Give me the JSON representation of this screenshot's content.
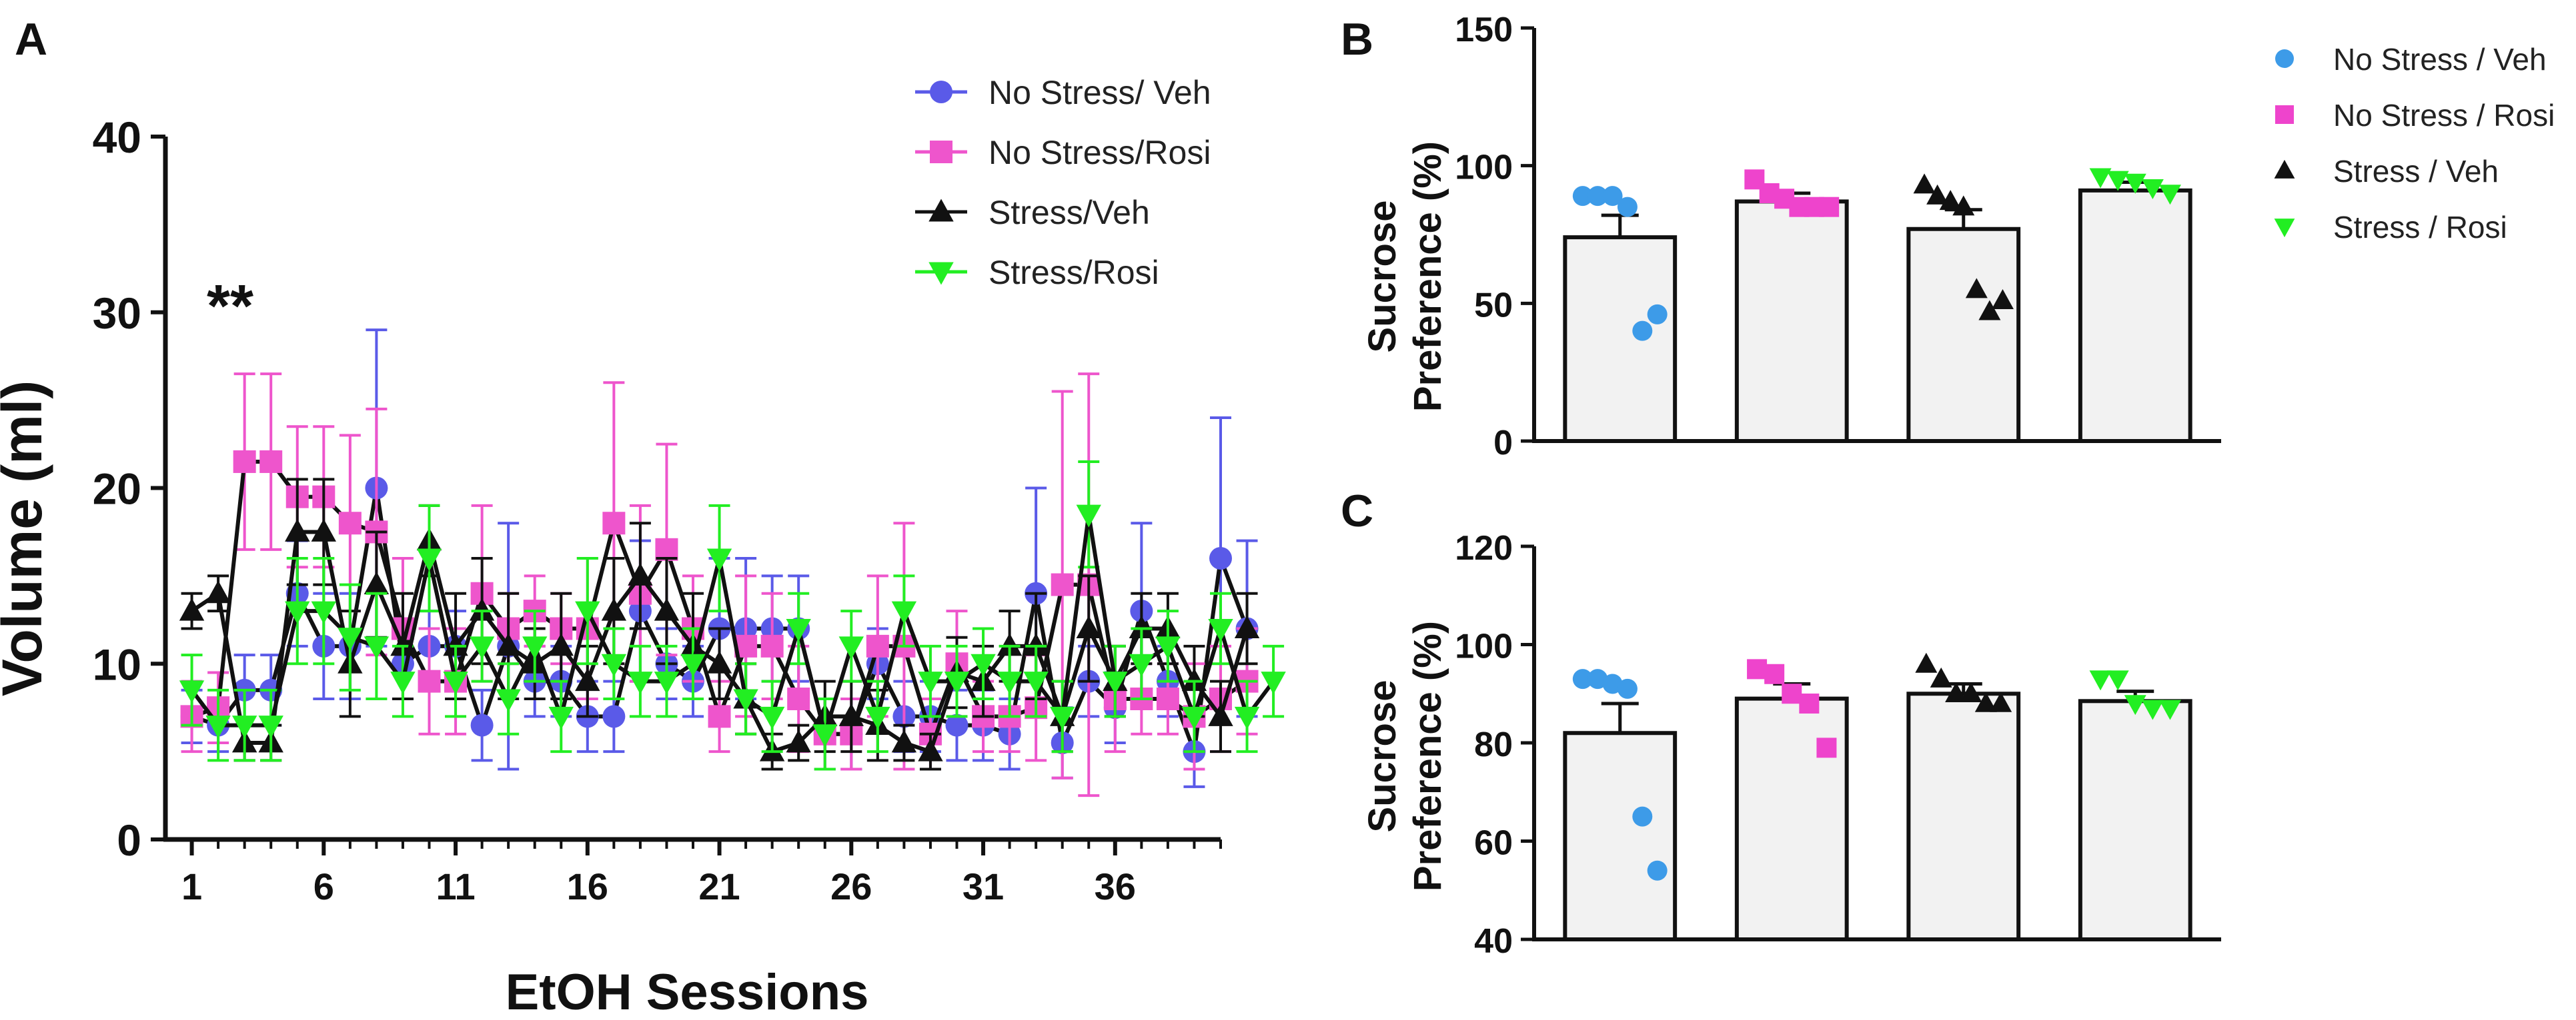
{
  "chart_data": [
    {
      "panel": "A",
      "type": "line",
      "title": "",
      "xlabel": "EtOH Sessions",
      "ylabel": "Volume (ml)",
      "ylim": [
        0,
        40
      ],
      "xlim": [
        0,
        40
      ],
      "yticks": [
        0,
        10,
        20,
        30,
        40
      ],
      "xticks": [
        1,
        6,
        11,
        16,
        21,
        26,
        31,
        36
      ],
      "annotation": "**",
      "annotation_at": {
        "x": 3,
        "y": 31
      },
      "series": [
        {
          "name": "No Stress/ Veh",
          "color": "#5a5ae8",
          "marker": "circle",
          "values": [
            7,
            6.5,
            8.5,
            8.5,
            14,
            11,
            11,
            20,
            10,
            11,
            11,
            6.5,
            11,
            9,
            9,
            7,
            7,
            13,
            10,
            9,
            12,
            12,
            12,
            12,
            6,
            6,
            10,
            7,
            7,
            6.5,
            6.5,
            6,
            14,
            5.5,
            9,
            7.5,
            13,
            9,
            5,
            16,
            12
          ],
          "errors": [
            1.5,
            1.5,
            2,
            2,
            3,
            3,
            3,
            9,
            2,
            2,
            2,
            2,
            7,
            2,
            2,
            2,
            2,
            4,
            2,
            2,
            4,
            4,
            3,
            3,
            2,
            2,
            2,
            2,
            2,
            2,
            2,
            2,
            6,
            2,
            2,
            2,
            5,
            2,
            2,
            8,
            5
          ]
        },
        {
          "name": "No Stress/Rosi",
          "color": "#ee55cc",
          "marker": "square",
          "values": [
            7,
            7.5,
            21.5,
            21.5,
            19.5,
            19.5,
            18,
            17.5,
            12,
            9,
            9,
            14,
            12,
            13,
            12,
            12,
            18,
            14,
            16.5,
            12,
            7,
            11,
            11,
            8,
            6,
            6,
            11,
            11,
            6,
            10,
            7,
            7,
            7.5,
            14.5,
            14.5,
            8,
            8,
            8,
            7,
            8,
            9
          ],
          "errors": [
            2,
            2,
            5,
            5,
            4,
            4,
            5,
            7,
            4,
            3,
            3,
            5,
            2,
            2,
            2,
            4,
            8,
            5,
            6,
            3,
            2,
            4,
            3,
            3,
            2,
            2,
            4,
            7,
            2,
            3,
            2,
            2,
            3,
            11,
            12,
            3,
            2,
            2,
            3,
            3,
            3
          ]
        },
        {
          "name": "Stress/Veh",
          "color": "#111111",
          "marker": "triangle-up",
          "values": [
            13,
            14,
            5.5,
            5.5,
            17.5,
            17.5,
            10,
            14.5,
            11,
            17,
            11,
            13,
            11,
            10,
            11,
            9,
            13,
            15,
            13,
            11,
            10,
            8,
            5,
            5.5,
            7,
            7,
            6.5,
            5.5,
            5,
            9.5,
            9,
            11,
            11,
            7,
            12,
            9,
            12,
            12,
            9,
            7,
            12
          ],
          "errors": [
            1,
            1,
            1,
            1,
            3,
            3,
            3,
            3,
            3,
            2,
            3,
            3,
            3,
            2,
            3,
            2,
            3,
            3,
            3,
            3,
            2,
            2,
            1,
            1,
            2,
            2,
            2,
            1,
            1,
            2,
            2,
            2,
            3,
            2,
            3,
            2,
            2,
            2,
            2,
            2,
            2
          ]
        },
        {
          "name": "Stress/Rosi",
          "color": "#22ee22",
          "marker": "triangle-down",
          "values": [
            8.5,
            6.5,
            6.5,
            6.5,
            13,
            13,
            11.5,
            11,
            9,
            16,
            9,
            11,
            8,
            11,
            7,
            13,
            10,
            9,
            9,
            10,
            16,
            8,
            7,
            12,
            6,
            11,
            7,
            13,
            9,
            9,
            10,
            9,
            9,
            7,
            18.5,
            9,
            10,
            11,
            7,
            12,
            7,
            9
          ],
          "errors": [
            2,
            2,
            2,
            2,
            3,
            3,
            3,
            3,
            2,
            3,
            2,
            2,
            2,
            2,
            2,
            3,
            2,
            2,
            2,
            2,
            3,
            2,
            2,
            2,
            2,
            2,
            2,
            2,
            2,
            2,
            2,
            2,
            2,
            2,
            3,
            2,
            2,
            2,
            2,
            2,
            2,
            2
          ]
        }
      ]
    },
    {
      "panel": "B",
      "type": "bar",
      "ylabel_line1": "Sucrose",
      "ylabel_line2": "Preference (%)",
      "ylim": [
        0,
        150
      ],
      "yticks": [
        0,
        50,
        100,
        150
      ],
      "categories": [
        "No Stress / Veh",
        "No Stress / Rosi",
        "Stress / Veh",
        "Stress / Rosi"
      ],
      "colors": [
        "#3d9be8",
        "#ee44cc",
        "#111111",
        "#22ee22"
      ],
      "markers": [
        "circle",
        "square",
        "triangle-up",
        "triangle-down"
      ],
      "values": [
        74,
        87,
        77,
        91
      ],
      "errors": [
        8,
        3,
        7,
        3
      ],
      "points": [
        [
          89,
          89,
          89,
          85,
          40,
          46
        ],
        [
          95,
          90,
          88,
          85,
          85,
          85
        ],
        [
          93,
          89,
          87,
          85,
          55,
          47,
          51
        ],
        [
          96,
          95,
          94,
          92,
          90
        ]
      ]
    },
    {
      "panel": "C",
      "type": "bar",
      "ylabel_line1": "Sucrose",
      "ylabel_line2": "Preference (%)",
      "ylim": [
        40,
        120
      ],
      "yticks": [
        40,
        60,
        80,
        100,
        120
      ],
      "categories": [
        "No Stress / Veh",
        "No Stress / Rosi",
        "Stress / Veh",
        "Stress / Rosi"
      ],
      "colors": [
        "#3d9be8",
        "#ee44cc",
        "#111111",
        "#22ee22"
      ],
      "markers": [
        "circle",
        "square",
        "triangle-up",
        "triangle-down"
      ],
      "values": [
        82,
        89,
        90,
        88.5
      ],
      "errors": [
        6,
        3,
        2,
        2
      ],
      "points": [
        [
          93,
          93,
          92,
          91,
          65,
          54
        ],
        [
          95,
          94,
          90,
          88,
          79
        ],
        [
          96,
          93,
          90,
          90,
          88,
          88
        ],
        [
          93,
          93,
          88,
          87,
          87
        ]
      ]
    }
  ]
}
